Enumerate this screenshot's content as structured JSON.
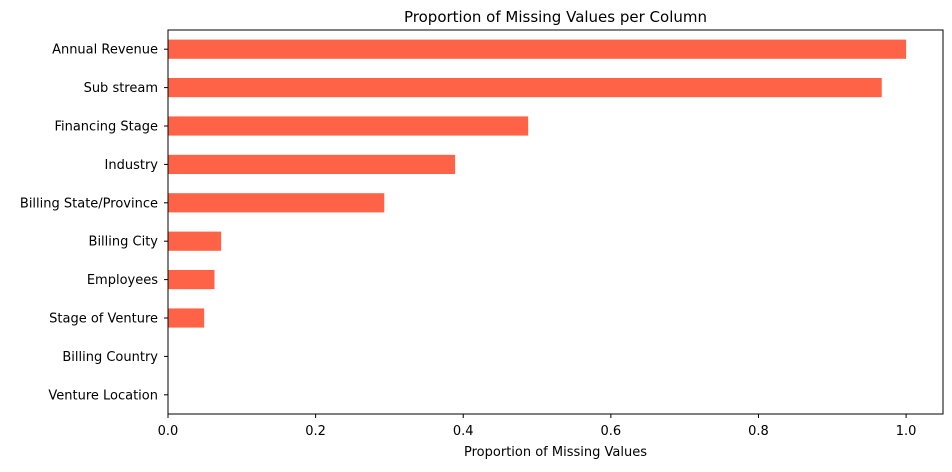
{
  "chart_data": {
    "type": "bar",
    "orientation": "horizontal",
    "title": "Proportion of Missing Values per Column",
    "xlabel": "Proportion of Missing Values",
    "ylabel": "",
    "categories": [
      "Annual Revenue",
      "Sub stream",
      "Financing Stage",
      "Industry",
      "Billing State/Province",
      "Billing City",
      "Employees",
      "Stage of Venture",
      "Billing Country",
      "Venture Location"
    ],
    "values": [
      1.0,
      0.967,
      0.488,
      0.389,
      0.293,
      0.072,
      0.063,
      0.049,
      0.0,
      0.0
    ],
    "xlim": [
      0.0,
      1.05
    ],
    "xticks": [
      0.0,
      0.2,
      0.4,
      0.6,
      0.8,
      1.0
    ],
    "xtick_labels": [
      "0.0",
      "0.2",
      "0.4",
      "0.6",
      "0.8",
      "1.0"
    ],
    "bar_color": "#FF6347",
    "grid": false,
    "legend": false
  }
}
